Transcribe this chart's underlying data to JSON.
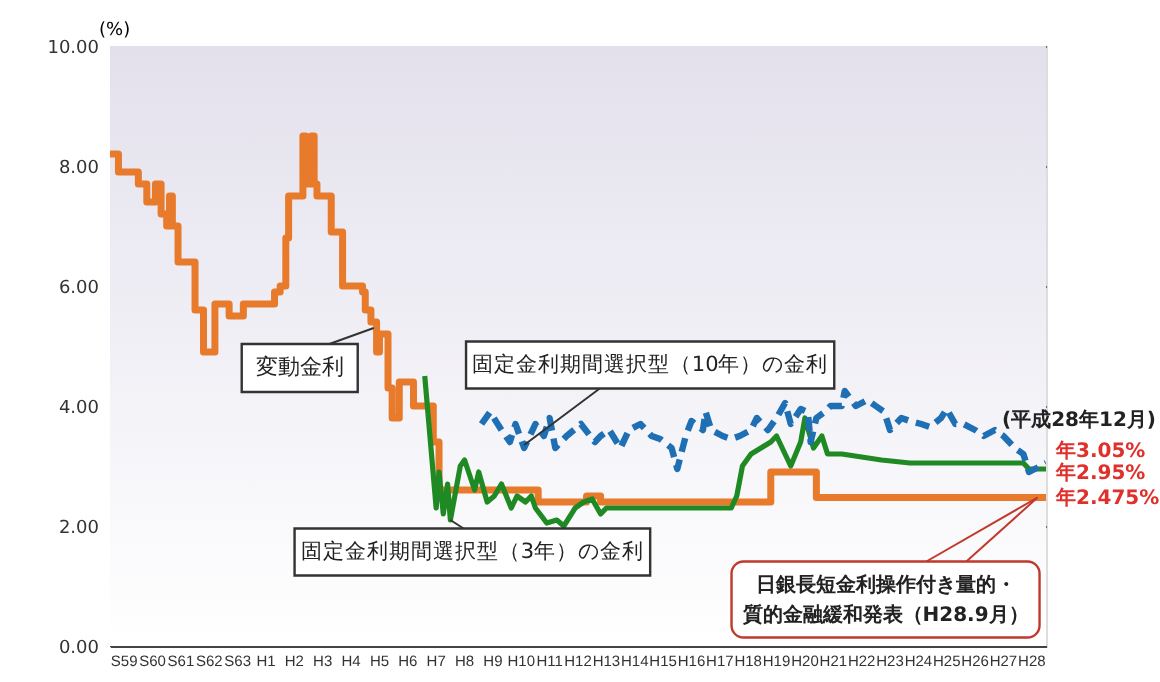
{
  "chart_data": {
    "type": "line",
    "ylabel": "(%)",
    "xlim": [
      "1984-04-01",
      "2017-04-01"
    ],
    "xticks": [
      {
        "value": "1984-10-01",
        "label": "S59"
      },
      {
        "value": "1985-10-01",
        "label": "S60"
      },
      {
        "value": "1986-10-01",
        "label": "S61"
      },
      {
        "value": "1987-10-01",
        "label": "S62"
      },
      {
        "value": "1988-10-01",
        "label": "S63"
      },
      {
        "value": "1989-10-01",
        "label": "H1"
      },
      {
        "value": "1990-10-01",
        "label": "H2"
      },
      {
        "value": "1991-10-01",
        "label": "H3"
      },
      {
        "value": "1992-10-01",
        "label": "H4"
      },
      {
        "value": "1993-10-01",
        "label": "H5"
      },
      {
        "value": "1994-10-01",
        "label": "H6"
      },
      {
        "value": "1995-10-01",
        "label": "H7"
      },
      {
        "value": "1996-10-01",
        "label": "H8"
      },
      {
        "value": "1997-10-01",
        "label": "H9"
      },
      {
        "value": "1998-10-01",
        "label": "H10"
      },
      {
        "value": "1999-10-01",
        "label": "H11"
      },
      {
        "value": "2000-10-01",
        "label": "H12"
      },
      {
        "value": "2001-10-01",
        "label": "H13"
      },
      {
        "value": "2002-10-01",
        "label": "H14"
      },
      {
        "value": "2003-10-01",
        "label": "H15"
      },
      {
        "value": "2004-10-01",
        "label": "H16"
      },
      {
        "value": "2005-10-01",
        "label": "H17"
      },
      {
        "value": "2006-10-01",
        "label": "H18"
      },
      {
        "value": "2007-10-01",
        "label": "H19"
      },
      {
        "value": "2008-10-01",
        "label": "H20"
      },
      {
        "value": "2009-10-01",
        "label": "H21"
      },
      {
        "value": "2010-10-01",
        "label": "H22"
      },
      {
        "value": "2011-10-01",
        "label": "H23"
      },
      {
        "value": "2012-10-01",
        "label": "H24"
      },
      {
        "value": "2013-10-01",
        "label": "H25"
      },
      {
        "value": "2014-10-01",
        "label": "H26"
      },
      {
        "value": "2015-10-01",
        "label": "H27"
      },
      {
        "value": "2016-10-01",
        "label": "H28"
      }
    ],
    "ylim": [
      0,
      10
    ],
    "yticks": [
      {
        "value": 0,
        "label": "0.00"
      },
      {
        "value": 2,
        "label": "2.00"
      },
      {
        "value": 4,
        "label": "4.00"
      },
      {
        "value": 6,
        "label": "6.00"
      },
      {
        "value": 8,
        "label": "8.00"
      },
      {
        "value": 10,
        "label": "10.00"
      }
    ],
    "grid": "y",
    "series": [
      {
        "type": "step",
        "color": "#e87a2c",
        "line_style": "solid",
        "x": [
          "1984-04-01",
          "1984-07-19",
          "1985-04-01",
          "1985-07-19",
          "1985-11-07",
          "1986-01-19",
          "1986-04-01",
          "1986-05-07",
          "1986-06-13",
          "1986-08-25",
          "1987-04-01",
          "1987-07-19",
          "1987-12-13",
          "1988-06-13",
          "1988-12-13",
          "1990-01-19",
          "1990-04-01",
          "1990-06-13",
          "1990-07-19",
          "1991-01-19",
          "1991-02-25",
          "1991-05-07",
          "1991-06-13",
          "1991-07-19",
          "1992-01-19",
          "1992-06-13",
          "1993-02-25",
          "1993-04-01",
          "1993-06-13",
          "1993-08-25",
          "1993-10-01",
          "1994-01-19",
          "1994-03-13",
          "1994-06-13",
          "1994-12-13",
          "1995-08-25",
          "1995-11-07",
          "1999-05-07",
          "2001-01-19",
          "2001-07-19",
          "2007-07-19",
          "2009-02-25",
          "2017-04-01"
        ],
        "values": [
          8.2,
          7.9,
          7.7,
          7.4,
          7.7,
          7.2,
          7.0,
          7.5,
          7.0,
          6.4,
          5.6,
          4.9,
          5.7,
          5.5,
          5.7,
          5.9,
          6.0,
          6.8,
          7.5,
          8.5,
          7.7,
          8.5,
          7.7,
          7.5,
          6.9,
          6.0,
          5.9,
          5.6,
          5.4,
          4.9,
          5.2,
          4.3,
          3.8,
          4.4,
          4.0,
          3.4,
          2.6,
          2.4,
          2.5,
          2.4,
          2.9,
          2.475,
          2.475
        ]
      },
      {
        "color": "#1f8a24",
        "line_style": "solid",
        "x": [
          "1995-05-07",
          "1995-10-01",
          "1995-11-07",
          "1996-01-01",
          "1996-02-25",
          "1996-04-01",
          "1996-08-07",
          "1996-10-01",
          "1997-02-07",
          "1997-04-01",
          "1997-07-19",
          "1997-10-19",
          "1998-01-19",
          "1998-05-25",
          "1998-08-07",
          "1998-11-25",
          "1999-02-07",
          "1999-04-01",
          "1999-08-25",
          "2000-01-01",
          "2000-04-01",
          "2000-08-25",
          "2000-12-13",
          "2001-04-01",
          "2001-07-19",
          "2001-10-01",
          "2006-02-25",
          "2006-05-07",
          "2006-07-19",
          "2006-11-07",
          "2007-07-19",
          "2007-10-01",
          "2008-04-01",
          "2008-08-07",
          "2008-10-01",
          "2009-01-19",
          "2009-05-07",
          "2009-07-19",
          "2010-01-19",
          "2010-10-01",
          "2011-06-13",
          "2012-06-13",
          "2016-06-13",
          "2016-08-25",
          "2017-04-01"
        ],
        "values": [
          4.5,
          2.3,
          2.9,
          2.2,
          2.7,
          2.1,
          3.0,
          3.1,
          2.6,
          2.9,
          2.4,
          2.5,
          2.7,
          2.3,
          2.5,
          2.4,
          2.5,
          2.3,
          2.05,
          2.1,
          2.0,
          2.3,
          2.4,
          2.45,
          2.2,
          2.3,
          2.3,
          2.5,
          3.0,
          3.2,
          3.4,
          3.5,
          3.0,
          3.4,
          3.8,
          3.3,
          3.5,
          3.2,
          3.2,
          3.15,
          3.1,
          3.05,
          3.05,
          2.95,
          2.95
        ]
      },
      {
        "color": "#1f6fb5",
        "line_style": "dashed",
        "x": [
          "1997-05-07",
          "1997-08-25",
          "1998-01-19",
          "1998-05-07",
          "1998-07-19",
          "1998-11-07",
          "1999-04-01",
          "1999-07-19",
          "1999-10-01",
          "1999-12-13",
          "2000-05-07",
          "2000-11-07",
          "2001-05-07",
          "2001-07-19",
          "2001-11-07",
          "2002-04-01",
          "2002-07-19",
          "2002-12-13",
          "2003-05-07",
          "2003-08-25",
          "2004-01-19",
          "2004-04-01",
          "2004-07-19",
          "2004-10-01",
          "2005-02-25",
          "2005-04-01",
          "2005-06-13",
          "2005-11-07",
          "2006-02-25",
          "2006-06-13",
          "2006-11-07",
          "2007-01-19",
          "2007-06-13",
          "2007-10-01",
          "2008-01-19",
          "2008-04-01",
          "2008-08-07",
          "2008-11-07",
          "2008-12-13",
          "2009-02-25",
          "2009-06-13",
          "2009-08-25",
          "2010-01-19",
          "2010-02-25",
          "2010-07-19",
          "2010-12-13",
          "2011-04-01",
          "2011-07-19",
          "2011-10-01",
          "2012-02-25",
          "2012-06-13",
          "2012-11-07",
          "2013-02-25",
          "2013-07-19",
          "2013-10-01",
          "2014-01-19",
          "2014-05-07",
          "2014-10-01",
          "2015-01-19",
          "2015-06-13",
          "2015-10-01",
          "2016-02-25",
          "2016-06-13",
          "2016-08-25",
          "2017-01-19",
          "2017-04-01"
        ],
        "values": [
          3.7,
          3.9,
          3.6,
          3.4,
          3.7,
          3.3,
          3.7,
          3.5,
          3.8,
          3.3,
          3.5,
          3.7,
          3.4,
          3.5,
          3.6,
          3.3,
          3.6,
          3.7,
          3.5,
          3.45,
          3.3,
          2.95,
          3.5,
          3.75,
          3.6,
          3.9,
          3.6,
          3.5,
          3.45,
          3.5,
          3.6,
          3.8,
          3.6,
          3.8,
          4.05,
          3.7,
          3.95,
          3.9,
          3.4,
          3.8,
          3.9,
          4.0,
          4.0,
          4.25,
          4.0,
          4.1,
          4.0,
          3.9,
          3.6,
          3.8,
          3.75,
          3.7,
          3.65,
          3.8,
          3.95,
          3.7,
          3.7,
          3.6,
          3.5,
          3.6,
          3.5,
          3.3,
          3.2,
          2.9,
          3.0,
          3.05
        ]
      }
    ],
    "annotations": [
      {
        "text": "変動金利",
        "x": "1993-07-19",
        "y": 5.3
      },
      {
        "text": "固定金利期間選択型（10年）の金利",
        "x": "1998-11-07",
        "y": 3.35
      },
      {
        "text": "固定金利期間選択型（3年）の金利",
        "x": "1996-04-01",
        "y": 2.1
      },
      "(平成28年12月)",
      {
        "text": "年3.05%",
        "x": "2017-04-01",
        "y": 3.05
      },
      {
        "text": "年2.95%",
        "x": "2017-04-01",
        "y": 2.95
      },
      {
        "text": "年2.475%",
        "x": "2017-04-01",
        "y": 2.475
      },
      {
        "text": "日銀長短金利操作付き量的・質的金融緩和発表（H28.9月）",
        "x": "2016-12-13",
        "y": 2.475
      }
    ]
  }
}
